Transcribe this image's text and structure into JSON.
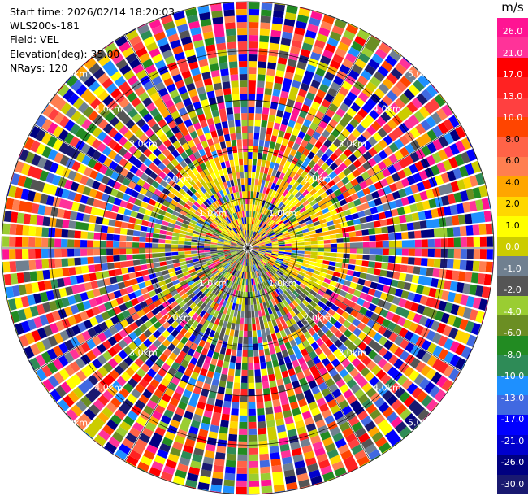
{
  "info": {
    "start_time": "Start time: 2026/02/14 18:20:03",
    "instrument": "WLS200s-181",
    "field": "Field: VEL",
    "elevation": "Elevation(deg): 35.00",
    "nrays": "NRays: 120"
  },
  "colorbar": {
    "unit": "m/s",
    "ticks": [
      "26.0",
      "21.0",
      "17.0",
      "13.0",
      "10.0",
      "8.0",
      "6.0",
      "4.0",
      "2.0",
      "1.0",
      "0.0",
      "-1.0",
      "-2.0",
      "-4.0",
      "-6.0",
      "-8.0",
      "-10.0",
      "-13.0",
      "-17.0",
      "-21.0",
      "-26.0",
      "-30.0"
    ],
    "colors": [
      "#ff1493",
      "#ff3399",
      "#ff0000",
      "#ff2222",
      "#ff4040",
      "#ff4500",
      "#ff6347",
      "#ff7f50",
      "#ffa500",
      "#ffd700",
      "#ffff00",
      "#cccc00",
      "#708090",
      "#555555",
      "#9acd32",
      "#6b8e23",
      "#228b22",
      "#2e8b57",
      "#1e90ff",
      "#4169e1",
      "#0000ff",
      "#0000cd",
      "#000080",
      "#191970"
    ]
  },
  "chart_data": {
    "type": "heatmap",
    "projection": "polar PPI",
    "field": "VEL",
    "elevation_deg": 35.0,
    "nrays": 120,
    "range_rings_km": [
      1.0,
      2.0,
      3.0,
      4.0,
      5.0
    ],
    "ring_labels": [
      "1.0km",
      "2.0km",
      "3.0km",
      "4.0km",
      "5.0km"
    ],
    "value_range": [
      -30.0,
      30.0
    ],
    "unit": "m/s"
  }
}
